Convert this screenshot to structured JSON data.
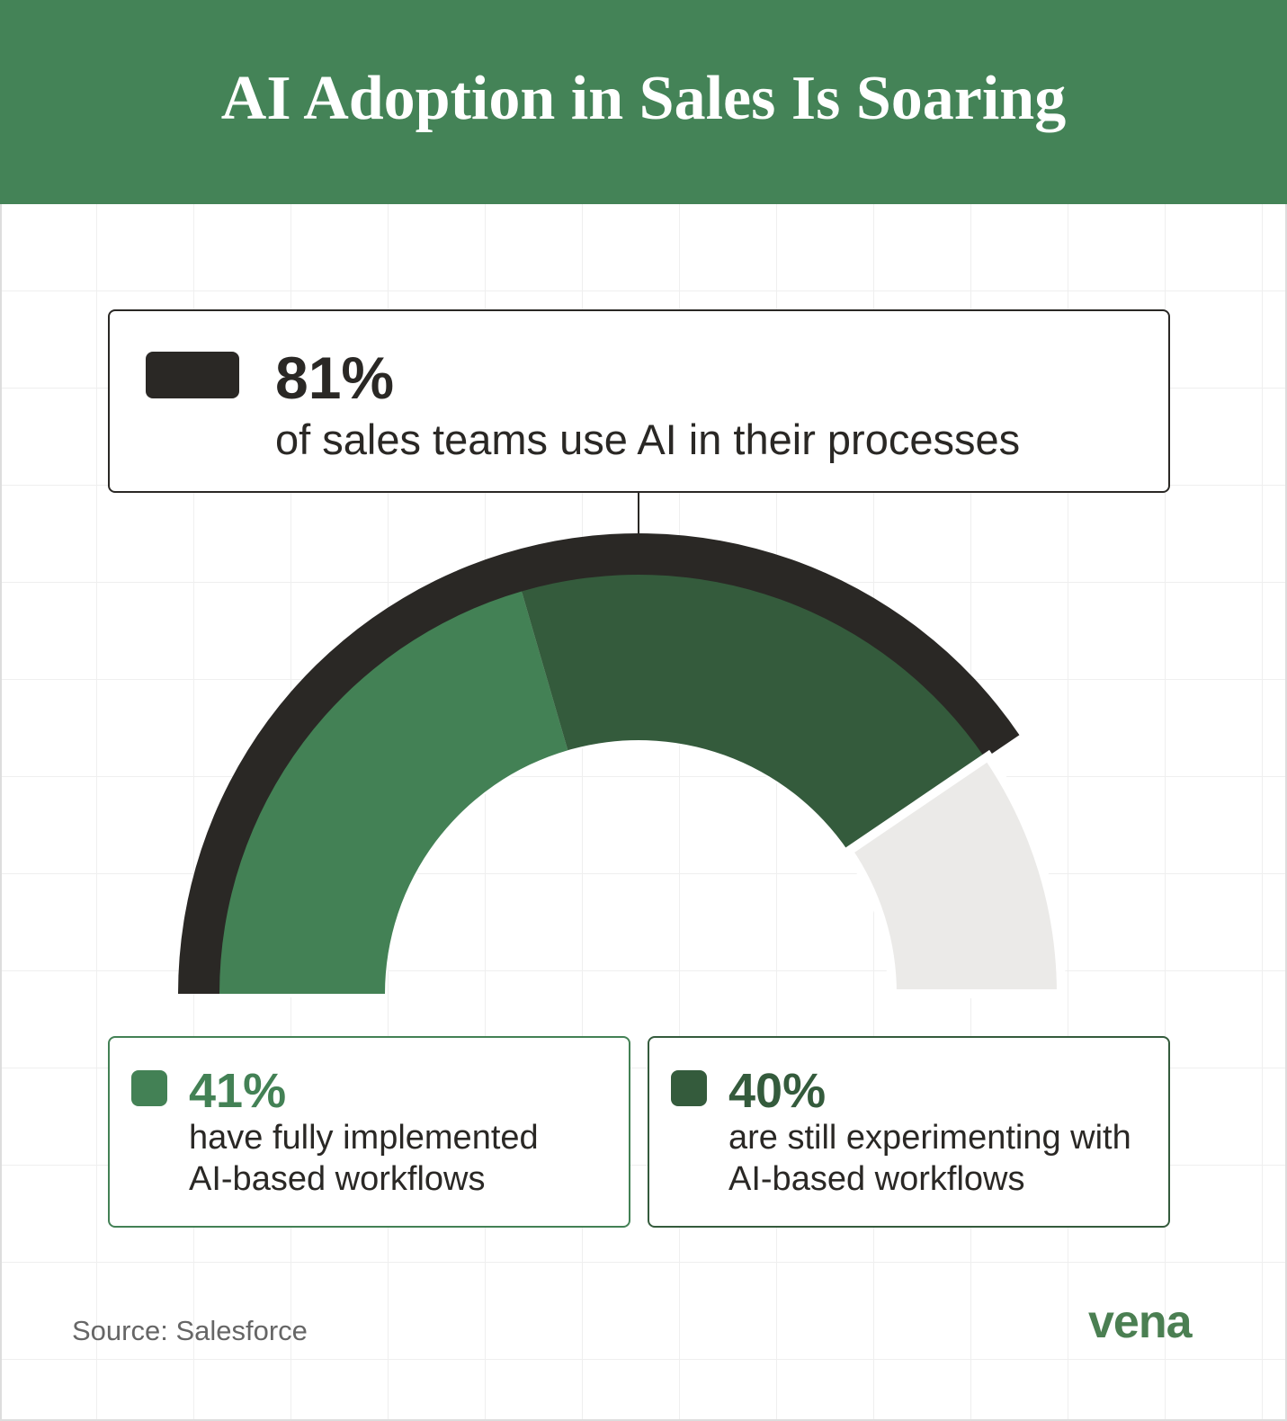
{
  "chart_data": {
    "type": "gauge",
    "title": "AI Adoption in Sales Is Soaring",
    "range": [
      0,
      100
    ],
    "total": {
      "value": 81,
      "value_label": "81%",
      "label": "of sales teams use AI in their processes",
      "color": "#2a2825"
    },
    "series": [
      {
        "name": "have fully implemented AI-based workflows",
        "color": "#438155",
        "value": 41,
        "value_label": "41%"
      },
      {
        "name": "are still experimenting with AI-based workflows",
        "color": "#345b3c",
        "value": 40,
        "value_label": "40%"
      }
    ],
    "track_color": "#ebeae8",
    "source": "Source: Salesforce",
    "logo": "vena"
  }
}
